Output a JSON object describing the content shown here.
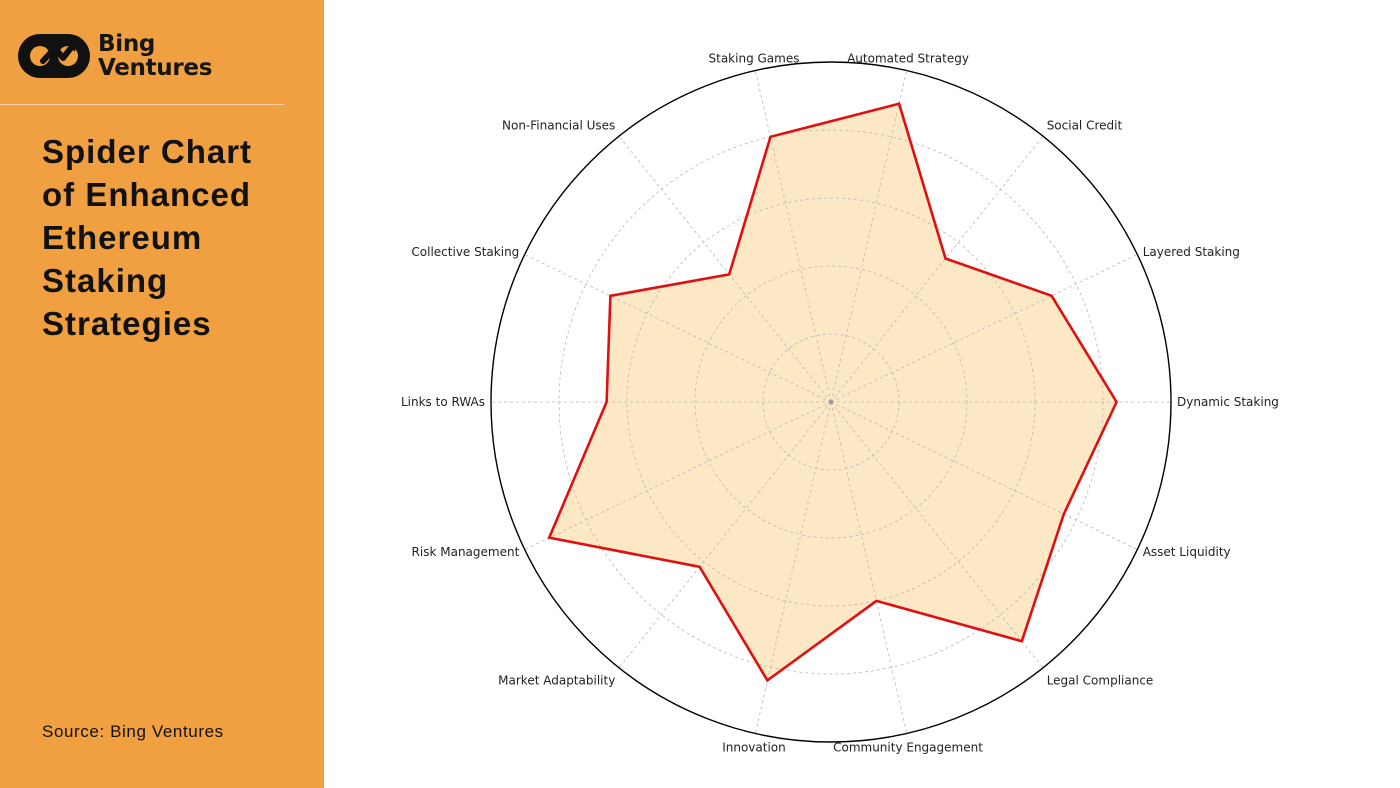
{
  "brand": {
    "line1": "Bing",
    "line2": "Ventures"
  },
  "page": {
    "title": "Spider Chart of Enhanced Ethereum Staking Strategies",
    "source": "Source: Bing Ventures"
  },
  "colors": {
    "sidebar": "#f0a040",
    "series_line": "#dd1111",
    "series_fill": "#fde8c5",
    "outer_ring": "#000000",
    "grid": "#b8b8b8"
  },
  "icons": {
    "logo": "bing-ventures-logo-icon"
  },
  "chart_data": {
    "type": "radar",
    "title": "",
    "categories": [
      "Dynamic Staking",
      "Layered Staking",
      "Social Credit",
      "Automated Strategy",
      "Staking Games",
      "Non-Financial Uses",
      "Collective Staking",
      "Links to RWAs",
      "Risk Management",
      "Market Adaptability",
      "Innovation",
      "Community Engagement",
      "Legal Compliance",
      "Asset Liquidity"
    ],
    "series": [
      {
        "values": [
          4.2,
          3.6,
          2.7,
          4.5,
          4.0,
          2.4,
          3.6,
          3.3,
          4.6,
          3.1,
          4.2,
          3.0,
          4.5,
          3.8
        ]
      }
    ],
    "rlim": [
      0,
      5
    ],
    "grid_rings": [
      1,
      2,
      3,
      4,
      5
    ],
    "grid": true,
    "legend": "none"
  }
}
